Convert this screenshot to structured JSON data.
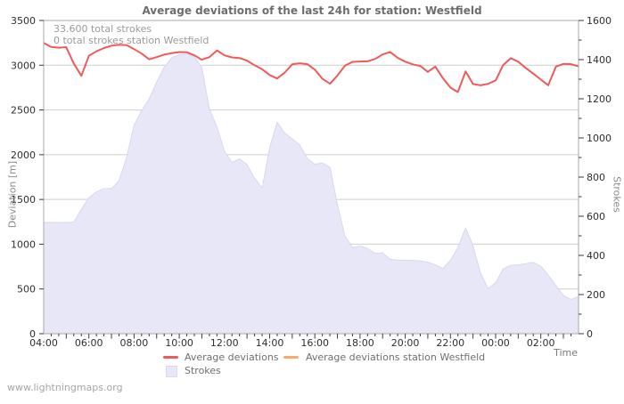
{
  "title": "Average deviations of the last 24h for station: Westfield",
  "annotations": {
    "total_strokes": "33.600 total strokes",
    "station_strokes": "0 total strokes station Westfield"
  },
  "watermark": "www.lightningmaps.org",
  "axes": {
    "left_title": "Deviation [m]",
    "right_title": "Strokes",
    "x_title": "Time",
    "left_ticks": [
      0,
      500,
      1000,
      1500,
      2000,
      2500,
      3000,
      3500
    ],
    "right_ticks": [
      0,
      200,
      400,
      600,
      800,
      1000,
      1200,
      1400,
      1600
    ],
    "x_tick_labels": [
      "04:00",
      "06:00",
      "08:00",
      "10:00",
      "12:00",
      "14:00",
      "16:00",
      "18:00",
      "20:00",
      "22:00",
      "00:00",
      "02:00"
    ],
    "x_tick_hours": [
      4,
      6,
      8,
      10,
      12,
      14,
      16,
      18,
      20,
      22,
      24,
      26
    ]
  },
  "legend": {
    "avg_deviations": "Average deviations",
    "avg_deviations_station": "Average deviations station Westfield",
    "strokes": "Strokes"
  },
  "colors": {
    "deviation_line": "#f05a5a",
    "station_line": "#f9ab67",
    "strokes_fill": "#e7e7f8",
    "strokes_edge": "#d8d8f0",
    "grid": "#cfcfcf",
    "border": "#a8a8a8",
    "tick": "#3a3a3a",
    "tick_text": "#2e2e2e"
  },
  "chart_data": {
    "type": "line",
    "title": "Average deviations of the last 24h for station: Westfield",
    "xlabel": "Time",
    "ylabel_left": "Deviation [m]",
    "ylabel_right": "Strokes",
    "x_range_hours": [
      4,
      27.67
    ],
    "left_ylim": [
      0,
      3500
    ],
    "right_ylim": [
      0,
      1600
    ],
    "grid": "horizontal",
    "legend_position": "bottom",
    "x": [
      4,
      4.33,
      4.67,
      5,
      5.33,
      5.67,
      6,
      6.33,
      6.67,
      7,
      7.33,
      7.67,
      8,
      8.33,
      8.67,
      9,
      9.33,
      9.67,
      10,
      10.33,
      10.67,
      11,
      11.33,
      11.67,
      12,
      12.33,
      12.67,
      13,
      13.33,
      13.67,
      14,
      14.33,
      14.67,
      15,
      15.33,
      15.67,
      16,
      16.33,
      16.67,
      17,
      17.33,
      17.67,
      18,
      18.33,
      18.67,
      19,
      19.33,
      19.67,
      20,
      20.33,
      20.67,
      21,
      21.33,
      21.67,
      22,
      22.33,
      22.67,
      23,
      23.33,
      23.67,
      24,
      24.33,
      24.67,
      25,
      25.33,
      25.67,
      26,
      26.33,
      26.67,
      27,
      27.33,
      27.67
    ],
    "series": [
      {
        "name": "Average deviations",
        "axis": "left",
        "style": "line",
        "values": [
          3248,
          3205,
          3196,
          3202,
          3020,
          2882,
          3105,
          3155,
          3192,
          3218,
          3230,
          3225,
          3180,
          3130,
          3065,
          3090,
          3118,
          3135,
          3147,
          3145,
          3110,
          3062,
          3090,
          3165,
          3110,
          3087,
          3080,
          3052,
          3000,
          2955,
          2890,
          2852,
          2918,
          3010,
          3022,
          3012,
          2950,
          2850,
          2793,
          2885,
          2995,
          3038,
          3042,
          3044,
          3070,
          3120,
          3148,
          3082,
          3040,
          3010,
          2992,
          2925,
          2985,
          2855,
          2750,
          2700,
          2930,
          2790,
          2775,
          2792,
          2830,
          3000,
          3078,
          3040,
          2970,
          2905,
          2840,
          2776,
          2985,
          3015,
          3012,
          2988
        ]
      },
      {
        "name": "Average deviations station Westfield",
        "axis": "left",
        "style": "line",
        "values": []
      },
      {
        "name": "Strokes",
        "axis": "right",
        "style": "area",
        "values": [
          568,
          568,
          568,
          568,
          570,
          635,
          695,
          725,
          741,
          741,
          780,
          900,
          1065,
          1140,
          1200,
          1285,
          1360,
          1410,
          1425,
          1430,
          1415,
          1360,
          1150,
          1055,
          932,
          875,
          893,
          864,
          795,
          745,
          950,
          1080,
          1025,
          995,
          965,
          895,
          866,
          872,
          850,
          660,
          500,
          440,
          448,
          435,
          410,
          413,
          380,
          375,
          376,
          375,
          372,
          365,
          352,
          333,
          375,
          440,
          540,
          450,
          310,
          230,
          260,
          330,
          350,
          352,
          358,
          364,
          345,
          300,
          245,
          195,
          175,
          190
        ]
      }
    ]
  }
}
